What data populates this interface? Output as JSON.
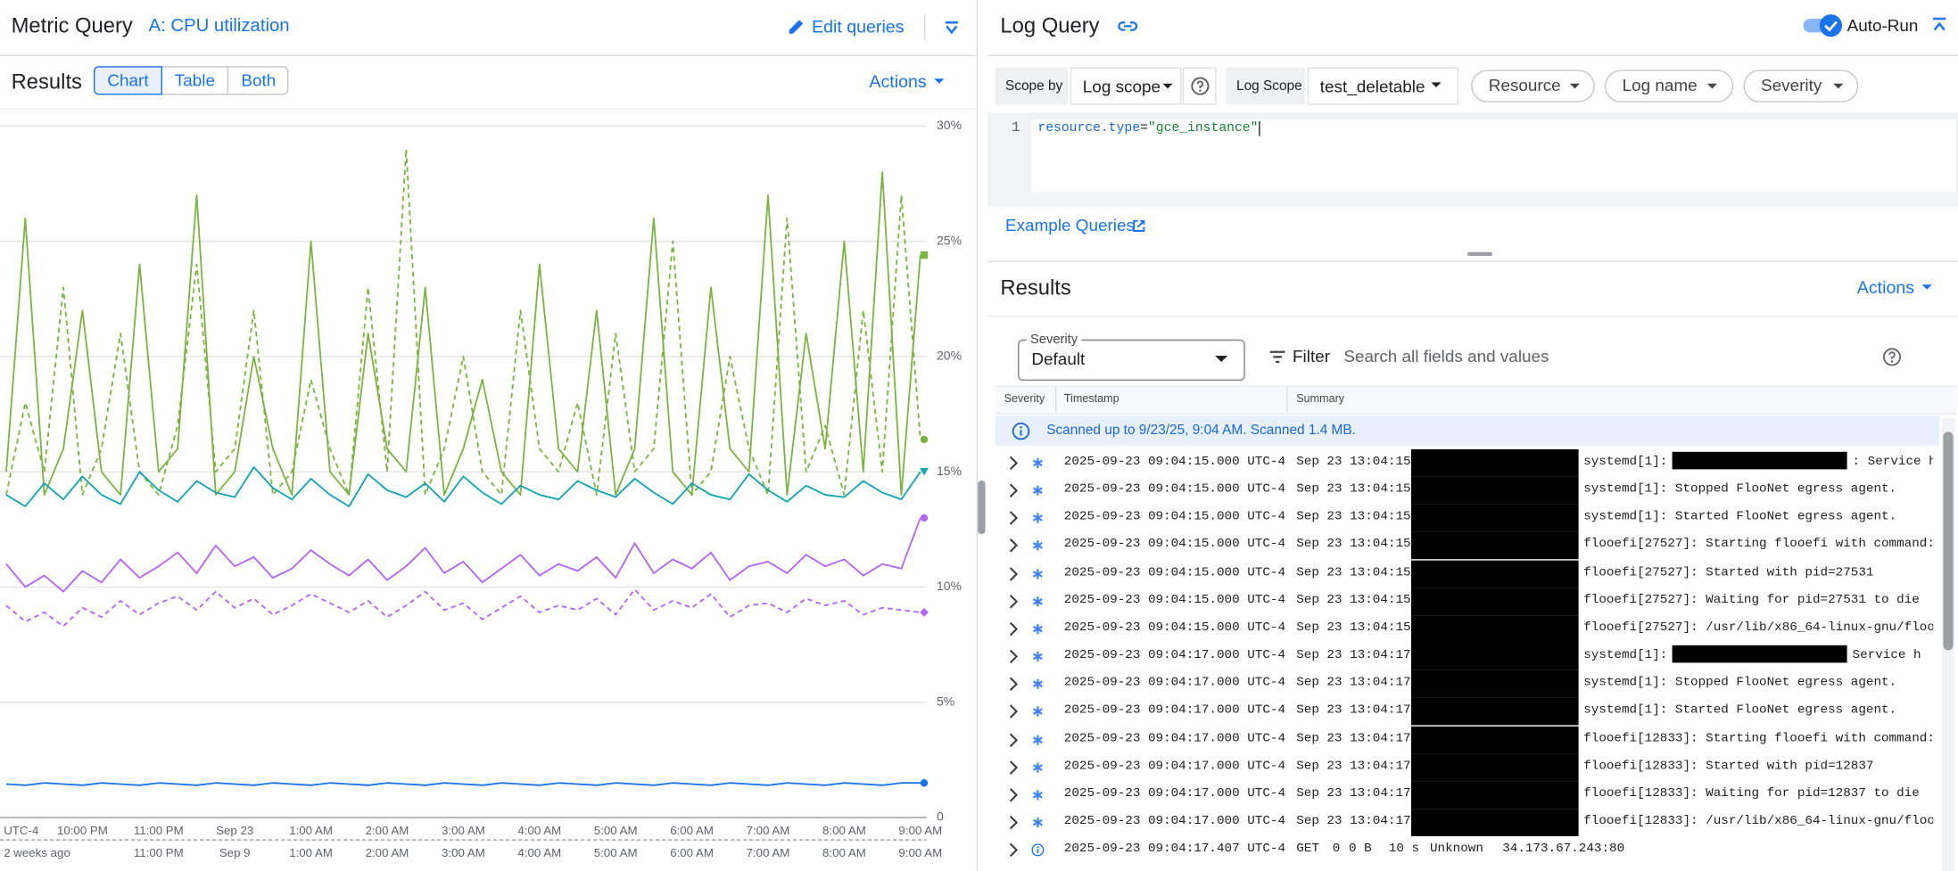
{
  "metric": {
    "title": "Metric Query",
    "query": "A: CPU utilization",
    "edit": "Edit queries",
    "results": "Results",
    "tabs": [
      "Chart",
      "Table",
      "Both"
    ],
    "actions": "Actions"
  },
  "chart_data": {
    "type": "line",
    "categories": [
      "UTC-4",
      null,
      null,
      null,
      "10:00 PM",
      null,
      null,
      null,
      "11:00 PM",
      null,
      null,
      null,
      "Sep 23",
      null,
      null,
      null,
      "1:00 AM",
      null,
      null,
      null,
      "2:00 AM",
      null,
      null,
      null,
      "3:00 AM",
      null,
      null,
      null,
      "4:00 AM",
      null,
      null,
      null,
      "5:00 AM",
      null,
      null,
      null,
      "6:00 AM",
      null,
      null,
      null,
      "7:00 AM",
      null,
      null,
      null,
      "8:00 AM",
      null,
      null,
      null,
      "9:00 AM"
    ],
    "compare_categories": [
      "2 weeks ago",
      null,
      null,
      null,
      null,
      null,
      null,
      null,
      "11:00 PM",
      null,
      null,
      null,
      "Sep 9",
      null,
      null,
      null,
      "1:00 AM",
      null,
      null,
      null,
      "2:00 AM",
      null,
      null,
      null,
      "3:00 AM",
      null,
      null,
      null,
      "4:00 AM",
      null,
      null,
      null,
      "5:00 AM",
      null,
      null,
      null,
      "6:00 AM",
      null,
      null,
      null,
      "7:00 AM",
      null,
      null,
      null,
      "8:00 AM",
      null,
      null,
      null,
      "9:00 AM"
    ],
    "ylim": [
      0,
      30
    ],
    "yticks": [
      0,
      {
        "value": 5,
        "label": "5%"
      },
      {
        "value": 10,
        "label": "10%"
      },
      {
        "value": 15,
        "label": "15%"
      },
      {
        "value": 20,
        "label": "20%"
      },
      {
        "value": 25,
        "label": "25%"
      },
      {
        "value": 30,
        "label": "30%"
      }
    ],
    "grid": true,
    "series": [
      {
        "color": "#7cb342",
        "dashed": true,
        "end_marker": "circle",
        "values": [
          14,
          18,
          15,
          23,
          14,
          16,
          21,
          15,
          14,
          17,
          24,
          15,
          16,
          22,
          14,
          15,
          19,
          16,
          14,
          23,
          15,
          29,
          14,
          16,
          20,
          15,
          14,
          22,
          16,
          15,
          18,
          14,
          21,
          15,
          16,
          25,
          14,
          15,
          20,
          16,
          14,
          26,
          15,
          17,
          14,
          22,
          15,
          27,
          16.4
        ]
      },
      {
        "color": "#7cb342",
        "dashed": false,
        "end_marker": "square",
        "values": [
          15,
          26,
          14,
          16,
          22,
          15,
          14,
          24,
          15,
          16,
          27,
          14,
          15,
          20,
          16,
          14,
          25,
          15,
          14,
          21,
          16,
          15,
          23,
          14,
          16,
          19,
          15,
          14,
          24,
          16,
          15,
          22,
          14,
          16,
          26,
          15,
          14,
          23,
          16,
          15,
          27,
          14,
          21,
          16,
          25,
          15,
          28,
          14,
          24.4
        ]
      },
      {
        "color": "#12a4af",
        "dashed": false,
        "end_marker": "triangle",
        "values": [
          14,
          13.5,
          14.5,
          13.8,
          14.8,
          14,
          13.6,
          15,
          14.2,
          13.7,
          14.6,
          14.1,
          13.9,
          15.2,
          14.3,
          13.8,
          14.7,
          14,
          13.5,
          14.9,
          14.2,
          13.9,
          14.5,
          13.7,
          14.8,
          14.1,
          13.6,
          14.4,
          14,
          13.8,
          14.6,
          14.2,
          13.9,
          14.7,
          14.1,
          13.6,
          14.5,
          14,
          13.8,
          14.9,
          14.2,
          13.7,
          14.4,
          14,
          13.9,
          14.6,
          14.1,
          13.8,
          15
        ]
      },
      {
        "color": "#b165f5",
        "dashed": false,
        "end_marker": "circle",
        "values": [
          11,
          10,
          10.5,
          9.8,
          10.7,
          10.2,
          11.2,
          10.4,
          10.9,
          11.5,
          10.6,
          11.8,
          10.9,
          11.3,
          10.4,
          10.8,
          11.6,
          11,
          10.5,
          11.2,
          10.3,
          10.9,
          11.7,
          10.6,
          11.1,
          10.2,
          10.8,
          11.4,
          10.5,
          11,
          10.7,
          11.3,
          10.4,
          11.9,
          10.6,
          11.2,
          10.8,
          11.5,
          10.3,
          10.9,
          11.1,
          10.6,
          11.4,
          10.9,
          11.2,
          10.5,
          11,
          10.8,
          13
        ]
      },
      {
        "color": "#b165f5",
        "dashed": true,
        "end_marker": "diamond",
        "values": [
          9.2,
          8.5,
          8.9,
          8.3,
          9.1,
          8.7,
          9.4,
          8.8,
          9.3,
          9.6,
          9,
          9.8,
          9.1,
          9.5,
          8.8,
          9.2,
          9.7,
          9.3,
          8.9,
          9.4,
          8.7,
          9.2,
          9.8,
          9,
          9.3,
          8.6,
          9.1,
          9.6,
          8.9,
          9.2,
          9,
          9.5,
          8.8,
          9.9,
          9,
          9.4,
          9.1,
          9.7,
          8.7,
          9.2,
          9.3,
          8.9,
          9.5,
          9.2,
          9.4,
          8.8,
          9.1,
          9,
          8.9
        ]
      },
      {
        "color": "#1a73e8",
        "dashed": false,
        "end_marker": "circle",
        "values": [
          1.45,
          1.4,
          1.5,
          1.45,
          1.4,
          1.5,
          1.45,
          1.4,
          1.5,
          1.45,
          1.4,
          1.5,
          1.45,
          1.4,
          1.5,
          1.45,
          1.4,
          1.5,
          1.45,
          1.4,
          1.5,
          1.45,
          1.4,
          1.5,
          1.45,
          1.4,
          1.5,
          1.45,
          1.4,
          1.5,
          1.45,
          1.4,
          1.5,
          1.45,
          1.4,
          1.5,
          1.45,
          1.4,
          1.5,
          1.45,
          1.4,
          1.5,
          1.45,
          1.4,
          1.5,
          1.45,
          1.4,
          1.5,
          1.5
        ]
      }
    ]
  },
  "log": {
    "title": "Log Query",
    "autorun": "Auto-Run",
    "scope_by": "Scope by",
    "scope_value": "Log scope",
    "log_scope_label": "Log Scope",
    "log_scope_value": "test_deletable",
    "chips": [
      "Resource",
      "Log name",
      "Severity"
    ],
    "query_line": "1",
    "query_key": "resource.type",
    "query_op": "=",
    "query_value": "\"gce_instance\"",
    "example": "Example Queries",
    "results": "Results",
    "actions": "Actions",
    "severity_label": "Severity",
    "severity_value": "Default",
    "filter": "Filter",
    "search": "Search all fields and values",
    "columns": [
      "Severity",
      "Timestamp",
      "Summary"
    ],
    "banner": "Scanned up to 9/23/25, 9:04 AM. Scanned 1.4 MB.",
    "rows": [
      {
        "timestamp": "2025-09-23 09:04:15.000 UTC-4",
        "time": "Sep 23 13:04:15",
        "message": "systemd[1]:",
        "tail": ": Service h"
      },
      {
        "timestamp": "2025-09-23 09:04:15.000 UTC-4",
        "time": "Sep 23 13:04:15",
        "message": "systemd[1]: Stopped FlooNet egress agent."
      },
      {
        "timestamp": "2025-09-23 09:04:15.000 UTC-4",
        "time": "Sep 23 13:04:15",
        "message": "systemd[1]: Started FlooNet egress agent."
      },
      {
        "timestamp": "2025-09-23 09:04:15.000 UTC-4",
        "time": "Sep 23 13:04:15",
        "message": "flooefi[27527]: Starting flooefi with command:"
      },
      {
        "timestamp": "2025-09-23 09:04:15.000 UTC-4",
        "time": "Sep 23 13:04:15",
        "message": "flooefi[27527]: Started with pid=27531"
      },
      {
        "timestamp": "2025-09-23 09:04:15.000 UTC-4",
        "time": "Sep 23 13:04:15",
        "message": "flooefi[27527]: Waiting for pid=27531 to die"
      },
      {
        "timestamp": "2025-09-23 09:04:15.000 UTC-4",
        "time": "Sep 23 13:04:15",
        "message": "flooefi[27527]: /usr/lib/x86_64-linux-gnu/floo"
      },
      {
        "timestamp": "2025-09-23 09:04:17.000 UTC-4",
        "time": "Sep 23 13:04:17",
        "message": "systemd[1]:",
        "tail": "Service h"
      },
      {
        "timestamp": "2025-09-23 09:04:17.000 UTC-4",
        "time": "Sep 23 13:04:17",
        "message": "systemd[1]: Stopped FlooNet egress agent."
      },
      {
        "timestamp": "2025-09-23 09:04:17.000 UTC-4",
        "time": "Sep 23 13:04:17",
        "message": "systemd[1]: Started FlooNet egress agent."
      },
      {
        "timestamp": "2025-09-23 09:04:17.000 UTC-4",
        "time": "Sep 23 13:04:17",
        "message": "flooefi[12833]: Starting flooefi with command:"
      },
      {
        "timestamp": "2025-09-23 09:04:17.000 UTC-4",
        "time": "Sep 23 13:04:17",
        "message": "flooefi[12833]: Started with pid=12837"
      },
      {
        "timestamp": "2025-09-23 09:04:17.000 UTC-4",
        "time": "Sep 23 13:04:17",
        "message": "flooefi[12833]: Waiting for pid=12837 to die"
      },
      {
        "timestamp": "2025-09-23 09:04:17.000 UTC-4",
        "time": "Sep 23 13:04:17",
        "message": "flooefi[12833]: /usr/lib/x86_64-linux-gnu/floo"
      },
      {
        "timestamp": "2025-09-23 09:04:17.407 UTC-4",
        "fields": [
          "GET",
          "0",
          "0 B",
          "10 s",
          "Unknown",
          "34.173.67.243:80"
        ]
      }
    ]
  }
}
